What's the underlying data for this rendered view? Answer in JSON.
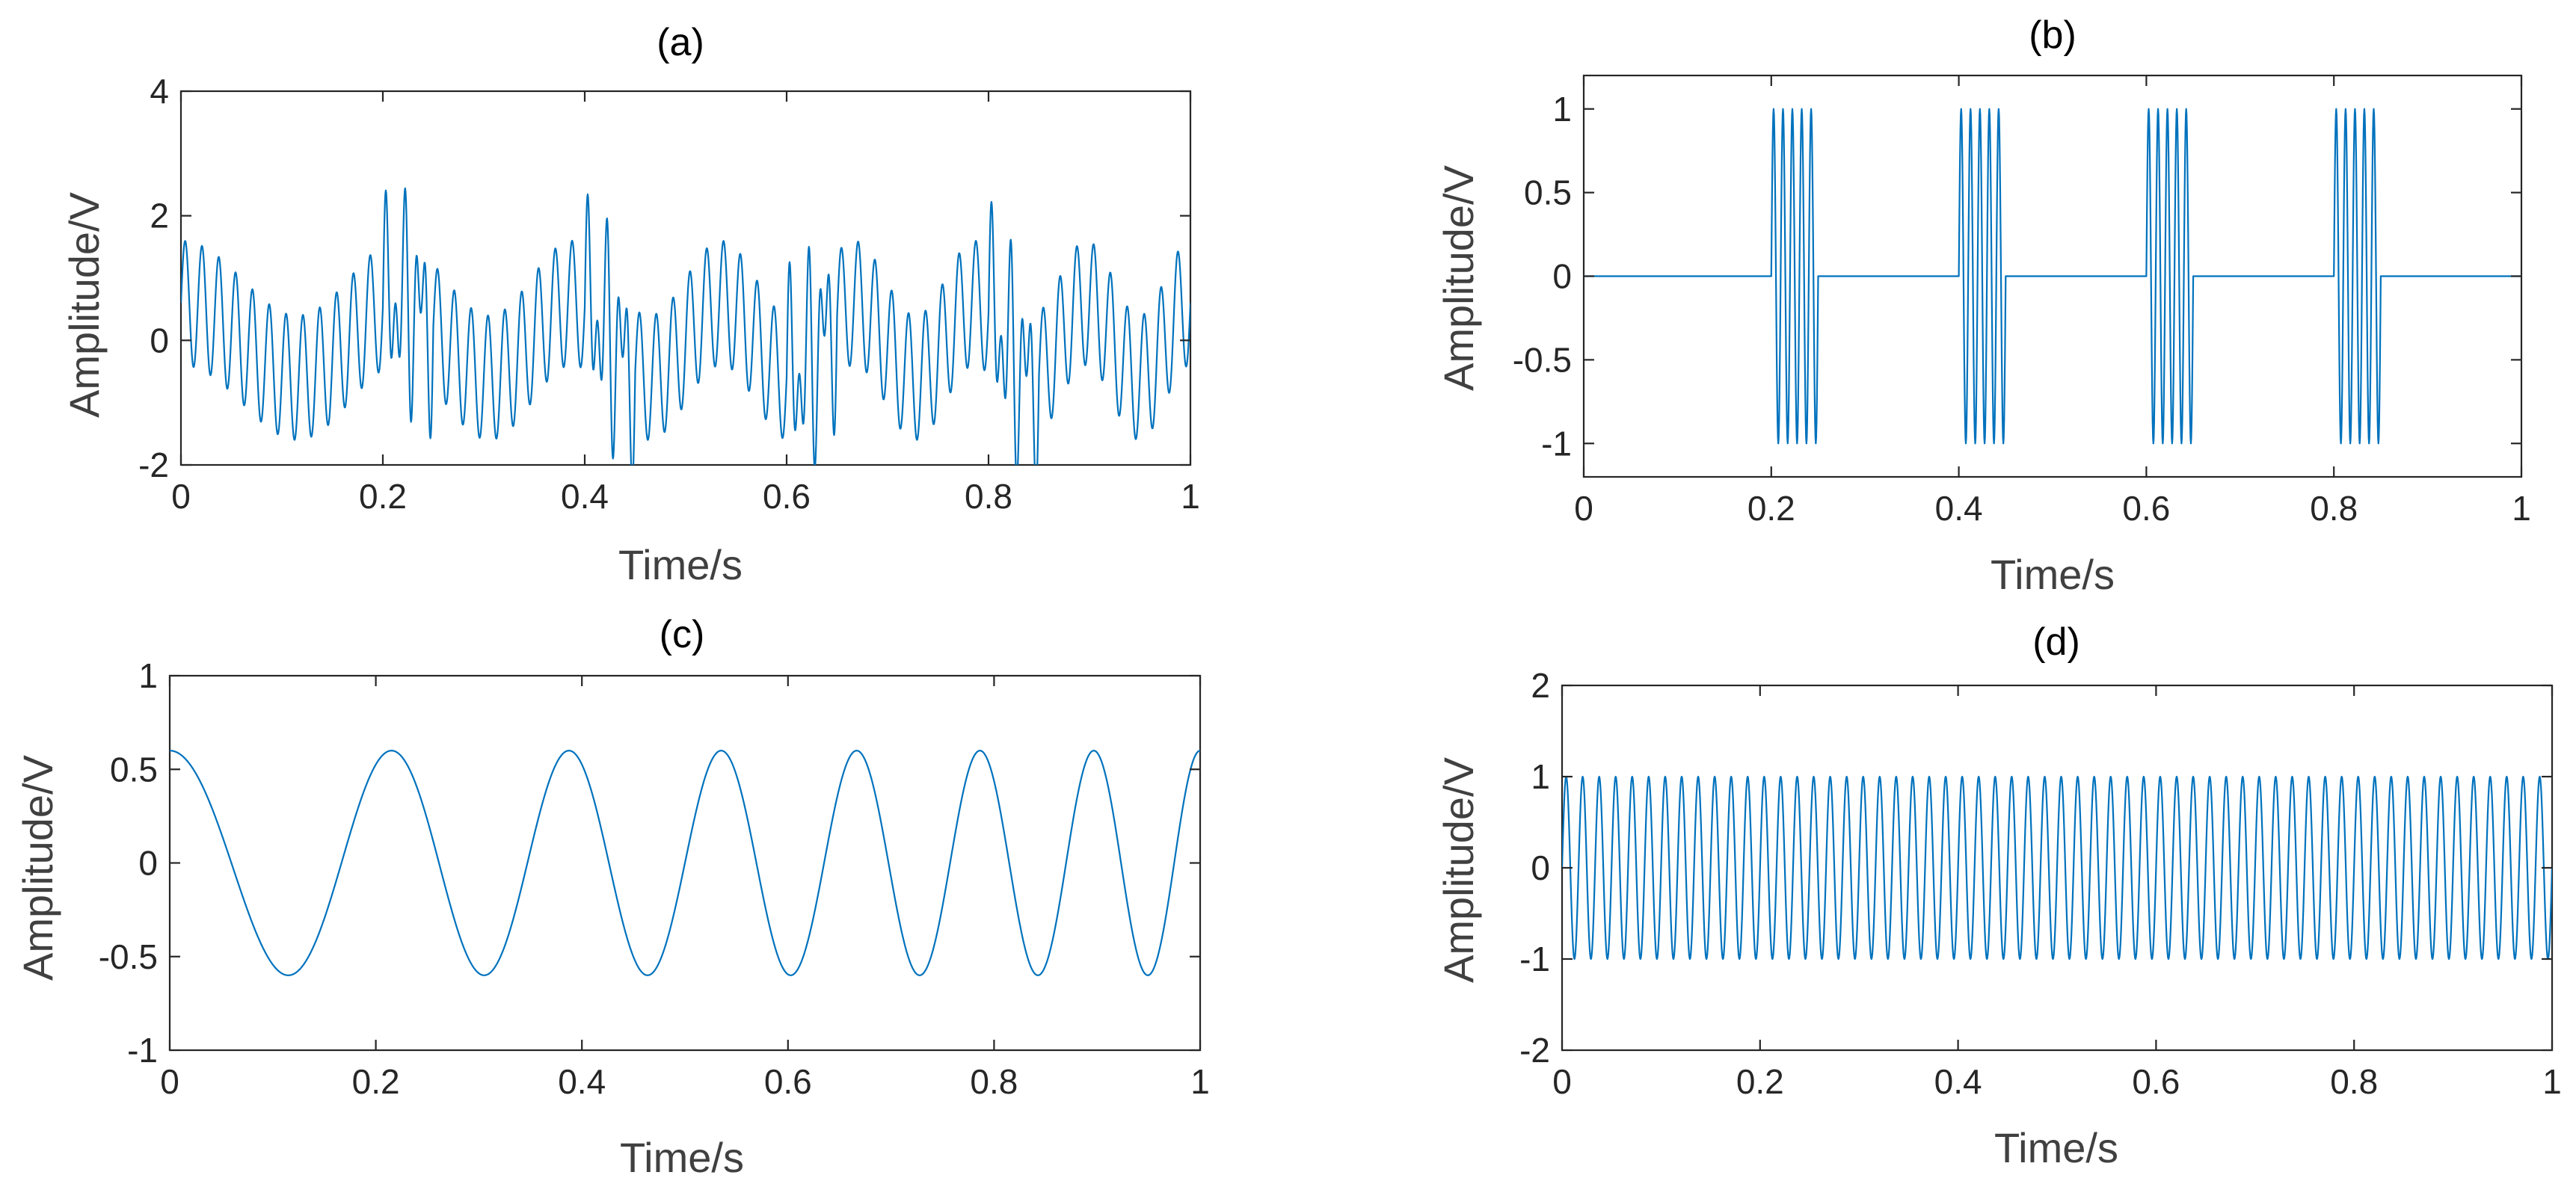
{
  "colors": {
    "series": "#0072BD",
    "axes": "#262626"
  },
  "chart_data": [
    {
      "id": "a",
      "type": "line",
      "title": "(a)",
      "xlabel": "Time/s",
      "ylabel": "Amplitude/V",
      "xlim": [
        0,
        1
      ],
      "ylim": [
        -2,
        4
      ],
      "xticks": [
        0,
        0.2,
        0.4,
        0.6,
        0.8,
        1
      ],
      "xtick_labels": [
        "0",
        "0.2",
        "0.4",
        "0.6",
        "0.8",
        "1"
      ],
      "yticks": [
        -2,
        0,
        2,
        4
      ],
      "ytick_labels": [
        "-2",
        "0",
        "2",
        "4"
      ],
      "grid": false,
      "series": [
        {
          "signal": "sum",
          "components": [
            {
              "kind": "sine",
              "amplitude": 0.6,
              "freq_start": 4,
              "freq_end": 10,
              "phase": 1.5708
            },
            {
              "kind": "sine",
              "amplitude": 1.0,
              "freq": 60,
              "phase": 0
            },
            {
              "kind": "burst",
              "amplitude": 1.0,
              "freq": 100,
              "starts": [
                0.2,
                0.4,
                0.6,
                0.8
              ],
              "duration": 0.05
            }
          ],
          "samples": 2400
        }
      ]
    },
    {
      "id": "b",
      "type": "line",
      "title": "(b)",
      "xlabel": "Time/s",
      "ylabel": "Amplitude/V",
      "xlim": [
        0,
        1
      ],
      "ylim": [
        -1.2,
        1.2
      ],
      "xticks": [
        0,
        0.2,
        0.4,
        0.6,
        0.8,
        1
      ],
      "xtick_labels": [
        "0",
        "0.2",
        "0.4",
        "0.6",
        "0.8",
        "1"
      ],
      "yticks": [
        -1,
        -0.5,
        0,
        0.5,
        1
      ],
      "ytick_labels": [
        "-1",
        "-0.5",
        "0",
        "0.5",
        "1"
      ],
      "grid": false,
      "series": [
        {
          "signal": "burst",
          "amplitude": 1.0,
          "freq": 100,
          "starts": [
            0.2,
            0.4,
            0.6,
            0.8
          ],
          "duration": 0.05,
          "samples": 2400
        }
      ]
    },
    {
      "id": "c",
      "type": "line",
      "title": "(c)",
      "xlabel": "Time/s",
      "ylabel": "Amplitude/V",
      "xlim": [
        0,
        1
      ],
      "ylim": [
        -1,
        1
      ],
      "xticks": [
        0,
        0.2,
        0.4,
        0.6,
        0.8,
        1
      ],
      "xtick_labels": [
        "0",
        "0.2",
        "0.4",
        "0.6",
        "0.8",
        "1"
      ],
      "yticks": [
        -1,
        -0.5,
        0,
        0.5,
        1
      ],
      "ytick_labels": [
        "-1",
        "-0.5",
        "0",
        "0.5",
        "1"
      ],
      "grid": false,
      "series": [
        {
          "signal": "chirp",
          "amplitude": 0.6,
          "freq_start": 4,
          "freq_end": 10,
          "phase": 1.5708,
          "samples": 1200
        }
      ]
    },
    {
      "id": "d",
      "type": "line",
      "title": "(d)",
      "xlabel": "Time/s",
      "ylabel": "Amplitude/V",
      "xlim": [
        0,
        1
      ],
      "ylim": [
        -2,
        2
      ],
      "xticks": [
        0,
        0.2,
        0.4,
        0.6,
        0.8,
        1
      ],
      "xtick_labels": [
        "0",
        "0.2",
        "0.4",
        "0.6",
        "0.8",
        "1"
      ],
      "yticks": [
        -2,
        -1,
        0,
        1,
        2
      ],
      "ytick_labels": [
        "-2",
        "-1",
        "0",
        "1",
        "2"
      ],
      "grid": false,
      "series": [
        {
          "signal": "sine",
          "amplitude": 1.0,
          "freq": 60,
          "phase": 0,
          "samples": 2400
        }
      ]
    }
  ]
}
